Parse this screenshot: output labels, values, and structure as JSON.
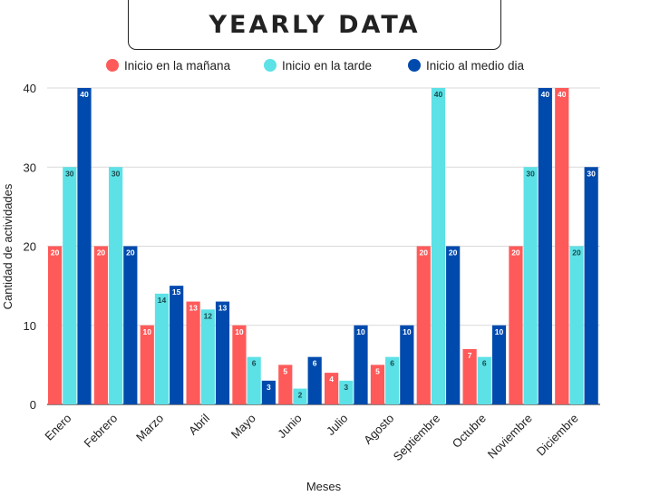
{
  "chart_data": {
    "type": "bar",
    "title": "YEARLY DATA",
    "xlabel": "Meses",
    "ylabel": "Cantidad de actividades",
    "ylim": [
      0,
      40
    ],
    "yticks": [
      0,
      10,
      20,
      30,
      40
    ],
    "grid": true,
    "legend_position": "top",
    "categories": [
      "Enero",
      "Febrero",
      "Marzo",
      "Abril",
      "Mayo",
      "Junio",
      "Julio",
      "Agosto",
      "Septiembre",
      "Octubre",
      "Noviembre",
      "Diciembre"
    ],
    "series": [
      {
        "name": "Inicio en la mañana",
        "color": "#ff5a5a",
        "label_color": "#ffffff",
        "values": [
          20,
          20,
          10,
          13,
          10,
          5,
          4,
          5,
          20,
          7,
          20,
          40
        ]
      },
      {
        "name": "Inicio en la tarde",
        "color": "#5ce1e6",
        "label_color": "#1a4a4c",
        "values": [
          30,
          30,
          14,
          12,
          6,
          2,
          3,
          6,
          40,
          6,
          30,
          20
        ]
      },
      {
        "name": "Inicio al medio dia",
        "color": "#004aad",
        "label_color": "#ffffff",
        "values": [
          40,
          20,
          15,
          13,
          3,
          6,
          10,
          10,
          20,
          10,
          40,
          30
        ]
      }
    ]
  }
}
